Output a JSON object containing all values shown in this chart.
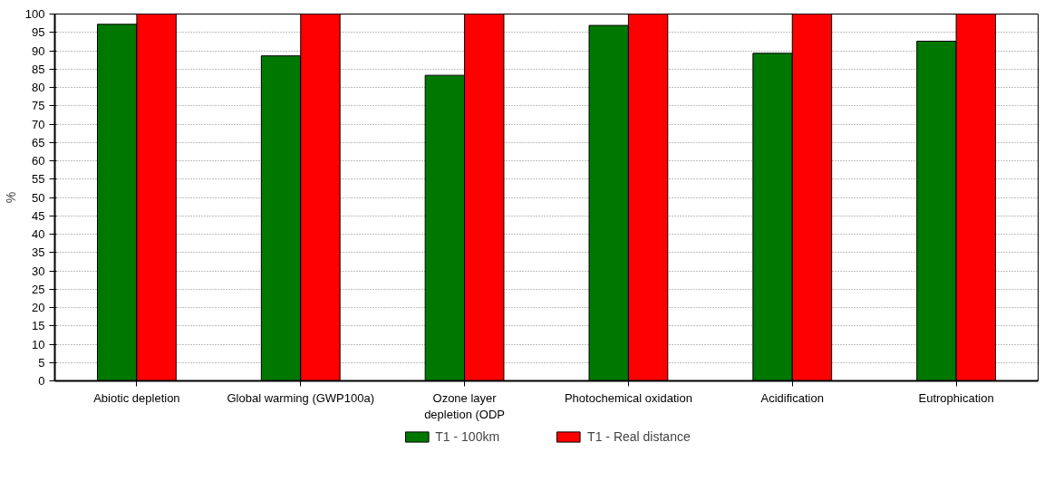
{
  "chart_data": {
    "type": "bar",
    "ylabel": "%",
    "categories": [
      "Abiotic depletion",
      "Global warming (GWP100a)",
      "Ozone layer depletion (ODP",
      "Photochemical oxidation",
      "Acidification",
      "Eutrophication"
    ],
    "series": [
      {
        "name": "T1 - 100km",
        "color": "#007800",
        "values": [
          97.2,
          88.6,
          83.3,
          96.9,
          89.3,
          92.6
        ]
      },
      {
        "name": "T1 - Real distance",
        "color": "#ff0000",
        "values": [
          100,
          100,
          100,
          100,
          100,
          100
        ]
      }
    ],
    "ylim": [
      0,
      100
    ],
    "yticks": [
      0,
      5,
      10,
      15,
      20,
      25,
      30,
      35,
      40,
      45,
      50,
      55,
      60,
      65,
      70,
      75,
      80,
      85,
      90,
      95,
      100
    ],
    "grid": "y",
    "legend": "bottom"
  }
}
